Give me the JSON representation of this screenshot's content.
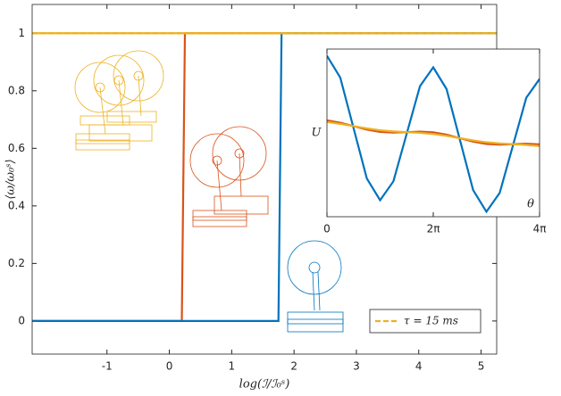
{
  "chart_data": [
    {
      "type": "line",
      "xlabel": "log(ℐ/ℐ₀ˢ)",
      "ylabel": "⟨ω/ω₀ˢ⟩",
      "xlim": [
        -2.2,
        5.25
      ],
      "ylim": [
        -0.115,
        1.1
      ],
      "xticks": [
        -1,
        0,
        1,
        2,
        3,
        4,
        5
      ],
      "yticks": [
        0,
        0.2,
        0.4,
        0.6,
        0.8,
        1
      ],
      "legend": "lower right",
      "grid": false,
      "series": [
        {
          "color": "#D95319",
          "x": [
            -2.2,
            0.2,
            0.25,
            5.25
          ],
          "values": [
            0,
            0,
            1,
            1
          ]
        },
        {
          "color": "#0072BD",
          "x": [
            -2.2,
            1.75,
            1.8,
            5.25
          ],
          "values": [
            0,
            0,
            1,
            1
          ]
        },
        {
          "color": "#EDB120",
          "x": [
            -2.2,
            5.25
          ],
          "values": [
            1,
            1
          ]
        },
        {
          "name": "τ = 15 ms",
          "color": "#EDB120",
          "dashed": true,
          "x": [
            -2.2,
            5.25
          ],
          "values": [
            1,
            1
          ]
        }
      ]
    },
    {
      "type": "line",
      "xlabel": "θ",
      "ylabel": "U",
      "xlim": [
        0,
        12.566
      ],
      "ylim": [
        -1.5,
        1.5
      ],
      "xticks": [
        0,
        {
          "value": 6.283,
          "label": "2π"
        },
        {
          "value": 12.566,
          "label": "4π"
        }
      ],
      "x": [
        0,
        0.785,
        1.571,
        2.356,
        3.142,
        3.927,
        4.712,
        5.498,
        6.283,
        7.069,
        7.854,
        8.639,
        9.425,
        10.21,
        10.996,
        11.781,
        12.566
      ],
      "series": [
        {
          "color": "#0072BD",
          "values": [
            1.38,
            0.991,
            0.088,
            -0.815,
            -1.204,
            -0.867,
            -0.016,
            0.836,
            1.173,
            0.784,
            -0.119,
            -1.022,
            -1.411,
            -1.074,
            -0.223,
            0.628,
            0.965
          ]
        },
        {
          "color": "#D95319",
          "values": [
            0.225,
            0.183,
            0.121,
            0.059,
            0.017,
            0.005,
            0.013,
            0.022,
            0.01,
            -0.032,
            -0.094,
            -0.156,
            -0.198,
            -0.21,
            -0.202,
            -0.194,
            -0.206
          ]
        },
        {
          "color": "#EDB120",
          "values": [
            0.195,
            0.162,
            0.121,
            0.08,
            0.047,
            0.026,
            0.013,
            0.001,
            -0.02,
            -0.053,
            -0.094,
            -0.135,
            -0.168,
            -0.189,
            -0.202,
            -0.215,
            -0.236
          ]
        }
      ]
    }
  ]
}
